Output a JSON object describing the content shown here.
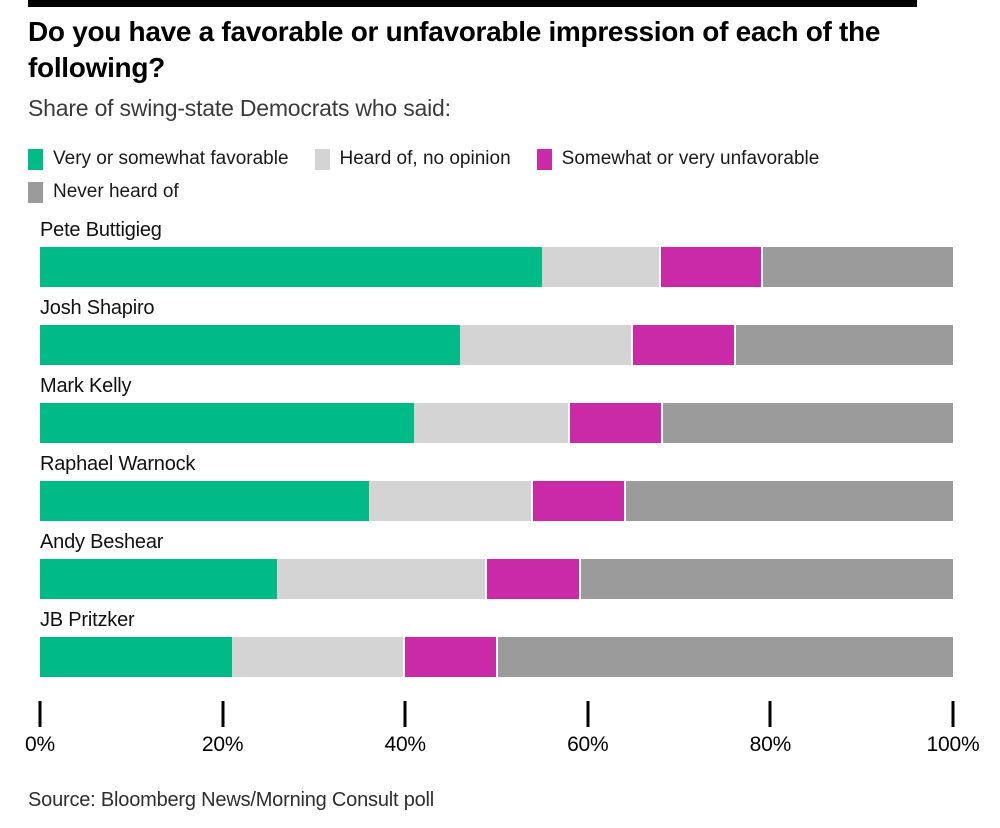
{
  "header": {
    "title": "Do you have a favorable or unfavorable impression of each of the following?",
    "subtitle": "Share of swing-state Democrats who said:"
  },
  "legend": [
    {
      "key": "favorable",
      "label": "Very or somewhat favorable",
      "color": "#00BA87"
    },
    {
      "key": "no-opinion",
      "label": "Heard of, no opinion",
      "color": "#D4D4D4"
    },
    {
      "key": "unfavorable",
      "label": "Somewhat or very unfavorable",
      "color": "#CA2AA8"
    },
    {
      "key": "never-heard",
      "label": "Never heard of",
      "color": "#9B9B9B"
    }
  ],
  "chart_data": {
    "type": "bar",
    "stacked": true,
    "orientation": "horizontal",
    "categories": [
      "Pete Buttigieg",
      "Josh Shapiro",
      "Mark Kelly",
      "Raphael Warnock",
      "Andy Beshear",
      "JB Pritzker"
    ],
    "series": [
      {
        "key": "favorable",
        "name": "Very or somewhat favorable",
        "color": "#00BA87",
        "values": [
          55,
          46,
          41,
          36,
          26,
          21
        ]
      },
      {
        "key": "no-opinion",
        "name": "Heard of, no opinion",
        "color": "#D4D4D4",
        "values": [
          13,
          19,
          17,
          18,
          23,
          19
        ]
      },
      {
        "key": "unfavorable",
        "name": "Somewhat or very unfavorable",
        "color": "#CA2AA8",
        "values": [
          11,
          11,
          10,
          10,
          10,
          10
        ]
      },
      {
        "key": "never-heard",
        "name": "Never heard of",
        "color": "#9B9B9B",
        "values": [
          21,
          24,
          32,
          36,
          41,
          50
        ]
      }
    ],
    "xlabel": "",
    "ylabel": "",
    "xlim": [
      0,
      100
    ],
    "x_ticks": [
      "0%",
      "20%",
      "40%",
      "60%",
      "80%",
      "100%"
    ],
    "grid": false,
    "legend_position": "top"
  },
  "source": "Source: Bloomberg News/Morning Consult poll",
  "accent_colors": {
    "rule": "#000000",
    "tick": "#000000"
  }
}
